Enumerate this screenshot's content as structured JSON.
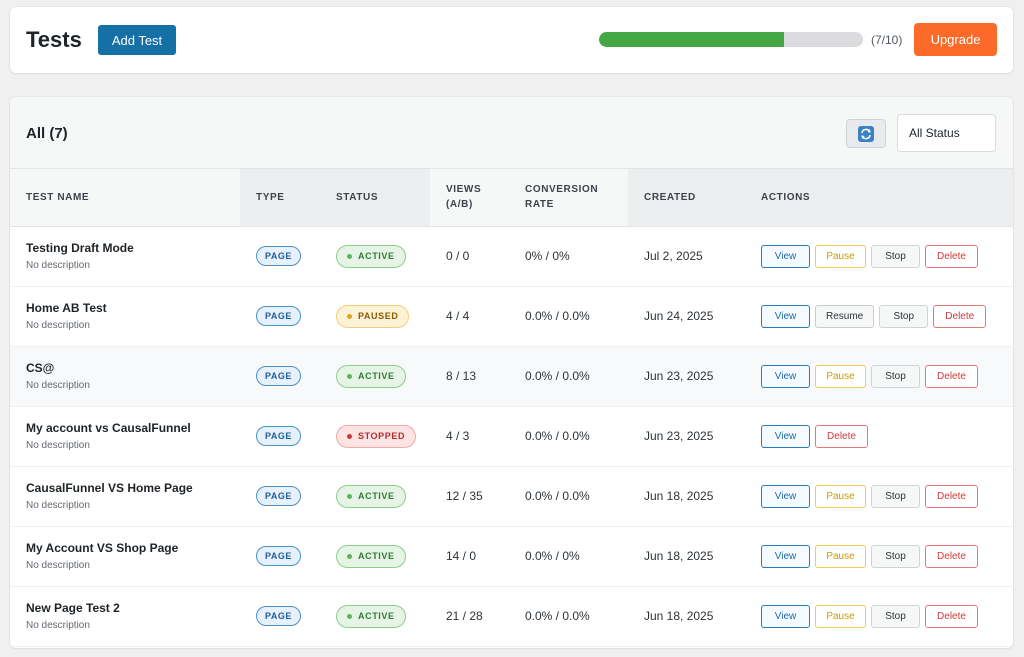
{
  "header": {
    "title": "Tests",
    "add_button_label": "Add Test",
    "progress": {
      "used": 7,
      "limit": 10,
      "text": "(7/10)"
    },
    "upgrade_label": "Upgrade"
  },
  "toolbar": {
    "count_label": "All (7)",
    "refresh_icon": "refresh-icon",
    "status_filter_value": "All Status"
  },
  "table": {
    "columns": [
      "TEST NAME",
      "TYPE",
      "STATUS",
      "VIEWS (A/B)",
      "CONVERSION RATE",
      "CREATED",
      "ACTIONS"
    ],
    "rows": [
      {
        "name": "Testing Draft Mode",
        "description": "No description",
        "type": "PAGE",
        "status": "ACTIVE",
        "status_key": "active",
        "views": "0 / 0",
        "conversion": "0% / 0%",
        "created": "Jul 2, 2025",
        "actions": [
          "View",
          "Pause",
          "Stop",
          "Delete"
        ]
      },
      {
        "name": "Home AB Test",
        "description": "No description",
        "type": "PAGE",
        "status": "PAUSED",
        "status_key": "paused",
        "views": "4 / 4",
        "conversion": "0.0% / 0.0%",
        "created": "Jun 24, 2025",
        "actions": [
          "View",
          "Resume",
          "Stop",
          "Delete"
        ]
      },
      {
        "name": "CS@",
        "description": "No description",
        "type": "PAGE",
        "status": "ACTIVE",
        "status_key": "active",
        "views": "8 / 13",
        "conversion": "0.0% / 0.0%",
        "created": "Jun 23, 2025",
        "actions": [
          "View",
          "Pause",
          "Stop",
          "Delete"
        ]
      },
      {
        "name": "My account vs CausalFunnel",
        "description": "No description",
        "type": "PAGE",
        "status": "STOPPED",
        "status_key": "stopped",
        "views": "4 / 3",
        "conversion": "0.0% / 0.0%",
        "created": "Jun 23, 2025",
        "actions": [
          "View",
          "Delete"
        ]
      },
      {
        "name": "CausalFunnel VS Home Page",
        "description": "No description",
        "type": "PAGE",
        "status": "ACTIVE",
        "status_key": "active",
        "views": "12 / 35",
        "conversion": "0.0% / 0.0%",
        "created": "Jun 18, 2025",
        "actions": [
          "View",
          "Pause",
          "Stop",
          "Delete"
        ]
      },
      {
        "name": "My Account VS Shop Page",
        "description": "No description",
        "type": "PAGE",
        "status": "ACTIVE",
        "status_key": "active",
        "views": "14 / 0",
        "conversion": "0.0% / 0%",
        "created": "Jun 18, 2025",
        "actions": [
          "View",
          "Pause",
          "Stop",
          "Delete"
        ]
      },
      {
        "name": "New Page Test 2",
        "description": "No description",
        "type": "PAGE",
        "status": "ACTIVE",
        "status_key": "active",
        "views": "21 / 28",
        "conversion": "0.0% / 0.0%",
        "created": "Jun 18, 2025",
        "actions": [
          "View",
          "Pause",
          "Stop",
          "Delete"
        ]
      }
    ]
  },
  "colors": {
    "primary": "#1570a6",
    "upgrade": "#fb6a28",
    "progress_fill": "#44a744",
    "active": "#2e7d32",
    "paused": "#8a5a00",
    "stopped": "#b32d2e"
  }
}
